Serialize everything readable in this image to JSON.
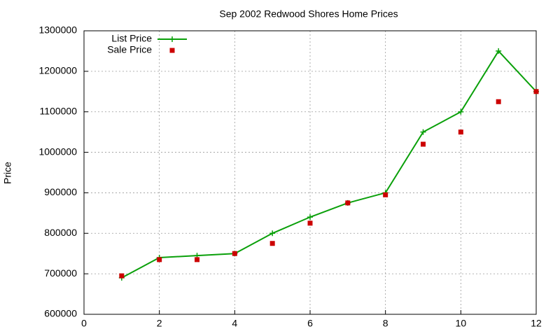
{
  "chart_data": {
    "type": "line",
    "title": "Sep 2002 Redwood Shores Home Prices",
    "y_label": "Price",
    "x": [
      1,
      2,
      3,
      4,
      5,
      6,
      7,
      8,
      9,
      10,
      11,
      12
    ],
    "series": [
      {
        "name": "List Price",
        "color": "#0aa00a",
        "line": true,
        "marker": "plus",
        "values": [
          690000,
          740000,
          745000,
          750000,
          800000,
          840000,
          875000,
          900000,
          1050000,
          1100000,
          1250000,
          1150000
        ]
      },
      {
        "name": "Sale Price",
        "color": "#cc0000",
        "line": false,
        "marker": "square",
        "values": [
          695000,
          735000,
          735000,
          750000,
          775000,
          825000,
          875000,
          895000,
          1020000,
          1050000,
          1125000,
          1150000
        ]
      }
    ],
    "xlim": [
      0,
      12
    ],
    "xticks": [
      0,
      2,
      4,
      6,
      8,
      10,
      12
    ],
    "ylim": [
      600000,
      1300000
    ],
    "yticks": [
      600000,
      700000,
      800000,
      900000,
      1000000,
      1100000,
      1200000,
      1300000
    ],
    "grid": true,
    "legend": "top-left"
  }
}
